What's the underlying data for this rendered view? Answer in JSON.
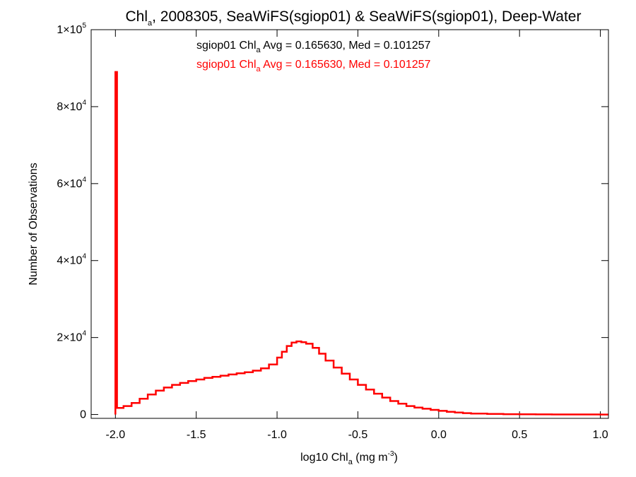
{
  "chart_data": {
    "type": "histogram",
    "title": {
      "pre": "Chl",
      "sub": "a",
      "post": ", 2008305, SeaWiFS(sgiop01) & SeaWiFS(sgiop01), Deep-Water"
    },
    "xlabel": {
      "pre": "log10 Chl",
      "sub": "a",
      "mid": " (mg m",
      "sup": "-3",
      "post": ")"
    },
    "ylabel": "Number of Observations",
    "xlim": [
      -2.15,
      1.05
    ],
    "ylim": [
      -1000,
      100000
    ],
    "x_ticks": [
      {
        "value": -2.0,
        "label": "-2.0"
      },
      {
        "value": -1.5,
        "label": "-1.5"
      },
      {
        "value": -1.0,
        "label": "-1.0"
      },
      {
        "value": -0.5,
        "label": "-0.5"
      },
      {
        "value": 0.0,
        "label": "0.0"
      },
      {
        "value": 0.5,
        "label": "0.5"
      },
      {
        "value": 1.0,
        "label": "1.0"
      }
    ],
    "y_ticks": [
      {
        "value": 0,
        "base": "0",
        "exp": ""
      },
      {
        "value": 20000,
        "base": "2×10",
        "exp": "4"
      },
      {
        "value": 40000,
        "base": "4×10",
        "exp": "4"
      },
      {
        "value": 60000,
        "base": "6×10",
        "exp": "4"
      },
      {
        "value": 80000,
        "base": "8×10",
        "exp": "4"
      },
      {
        "value": 100000,
        "base": "1×10",
        "exp": "5"
      }
    ],
    "legend": [
      {
        "pre": "sgiop01 Chl",
        "sub": "a",
        "post": " Avg = 0.165630, Med = 0.101257",
        "color": "#000000"
      },
      {
        "pre": "sgiop01 Chl",
        "sub": "a",
        "post": " Avg = 0.165630, Med = 0.101257",
        "color": "#ff0000"
      }
    ],
    "legend_position": "top-center",
    "grid": false,
    "series": [
      {
        "color": "#ff0000",
        "style": "step",
        "points": [
          [
            -2.0,
            0
          ],
          [
            -2.0,
            89000
          ],
          [
            -1.99,
            89000
          ],
          [
            -1.99,
            1700
          ],
          [
            -1.95,
            2200
          ],
          [
            -1.9,
            3000
          ],
          [
            -1.85,
            4100
          ],
          [
            -1.8,
            5200
          ],
          [
            -1.75,
            6200
          ],
          [
            -1.7,
            7000
          ],
          [
            -1.65,
            7700
          ],
          [
            -1.6,
            8200
          ],
          [
            -1.55,
            8700
          ],
          [
            -1.5,
            9100
          ],
          [
            -1.45,
            9500
          ],
          [
            -1.4,
            9800
          ],
          [
            -1.35,
            10100
          ],
          [
            -1.3,
            10400
          ],
          [
            -1.25,
            10700
          ],
          [
            -1.2,
            11000
          ],
          [
            -1.15,
            11400
          ],
          [
            -1.1,
            12000
          ],
          [
            -1.05,
            13000
          ],
          [
            -1.0,
            14800
          ],
          [
            -0.97,
            16300
          ],
          [
            -0.94,
            17800
          ],
          [
            -0.91,
            18700
          ],
          [
            -0.88,
            19000
          ],
          [
            -0.85,
            18800
          ],
          [
            -0.82,
            18400
          ],
          [
            -0.78,
            17300
          ],
          [
            -0.74,
            15800
          ],
          [
            -0.7,
            14000
          ],
          [
            -0.65,
            12200
          ],
          [
            -0.6,
            10600
          ],
          [
            -0.55,
            9100
          ],
          [
            -0.5,
            7700
          ],
          [
            -0.45,
            6500
          ],
          [
            -0.4,
            5400
          ],
          [
            -0.35,
            4400
          ],
          [
            -0.3,
            3500
          ],
          [
            -0.25,
            2800
          ],
          [
            -0.2,
            2200
          ],
          [
            -0.15,
            1800
          ],
          [
            -0.1,
            1500
          ],
          [
            -0.05,
            1200
          ],
          [
            0.0,
            950
          ],
          [
            0.05,
            700
          ],
          [
            0.1,
            500
          ],
          [
            0.15,
            350
          ],
          [
            0.2,
            250
          ],
          [
            0.3,
            150
          ],
          [
            0.4,
            80
          ],
          [
            0.5,
            40
          ],
          [
            0.6,
            20
          ],
          [
            0.7,
            10
          ],
          [
            0.8,
            5
          ],
          [
            0.9,
            2
          ],
          [
            1.0,
            0
          ],
          [
            1.05,
            0
          ]
        ]
      }
    ]
  }
}
